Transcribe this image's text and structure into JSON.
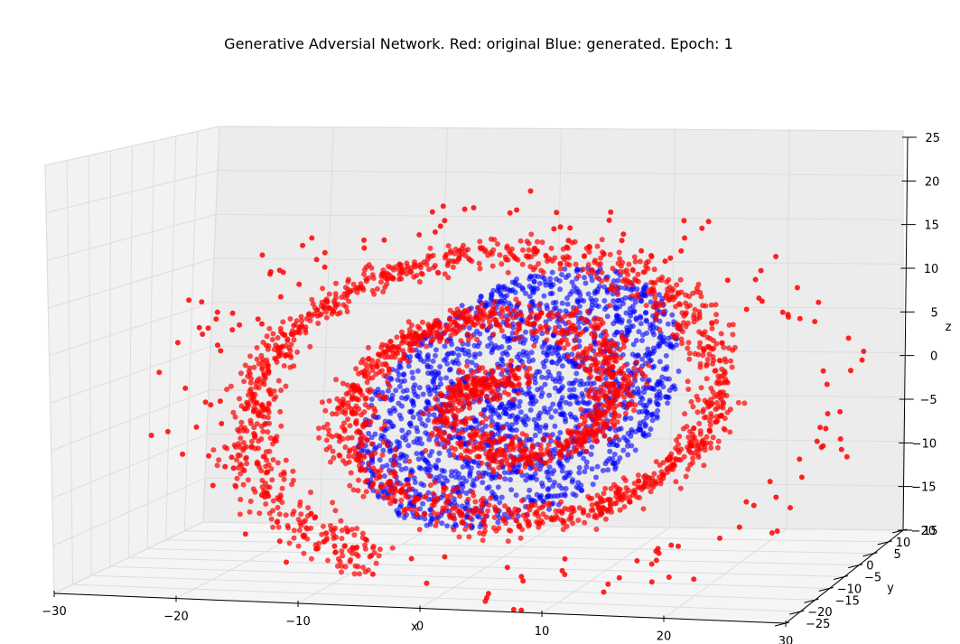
{
  "chart_data": {
    "type": "scatter",
    "projection": "3d",
    "title": "Generative Adversial Network. Red: original Blue: generated. Epoch: 1",
    "xlabel": "x",
    "ylabel": "y",
    "zlabel": "z",
    "xlim": [
      -30,
      30
    ],
    "ylim": [
      -25,
      15
    ],
    "zlim": [
      -20,
      25
    ],
    "x_ticks": [
      "−30",
      "−20",
      "−10",
      "0",
      "10",
      "20",
      "30"
    ],
    "y_ticks": [
      "−25",
      "−20",
      "−15",
      "−10",
      "−5",
      "0",
      "5",
      "10",
      "15"
    ],
    "z_ticks": [
      "−20",
      "−15",
      "−10",
      "−5",
      "0",
      "5",
      "10",
      "15",
      "20",
      "25"
    ],
    "grid": true,
    "legend": "none",
    "series": [
      {
        "name": "original",
        "color": "#ff0000",
        "shape": "swiss roll spiral",
        "spiral_turns": 2.5,
        "radius_range": [
          2,
          23
        ],
        "depth_range": [
          -20,
          10
        ]
      },
      {
        "name": "generated",
        "color": "#0000ff",
        "shape": "tilted elliptical sheet",
        "center": [
          0,
          -3
        ],
        "radius_range": [
          0,
          13
        ]
      }
    ]
  }
}
